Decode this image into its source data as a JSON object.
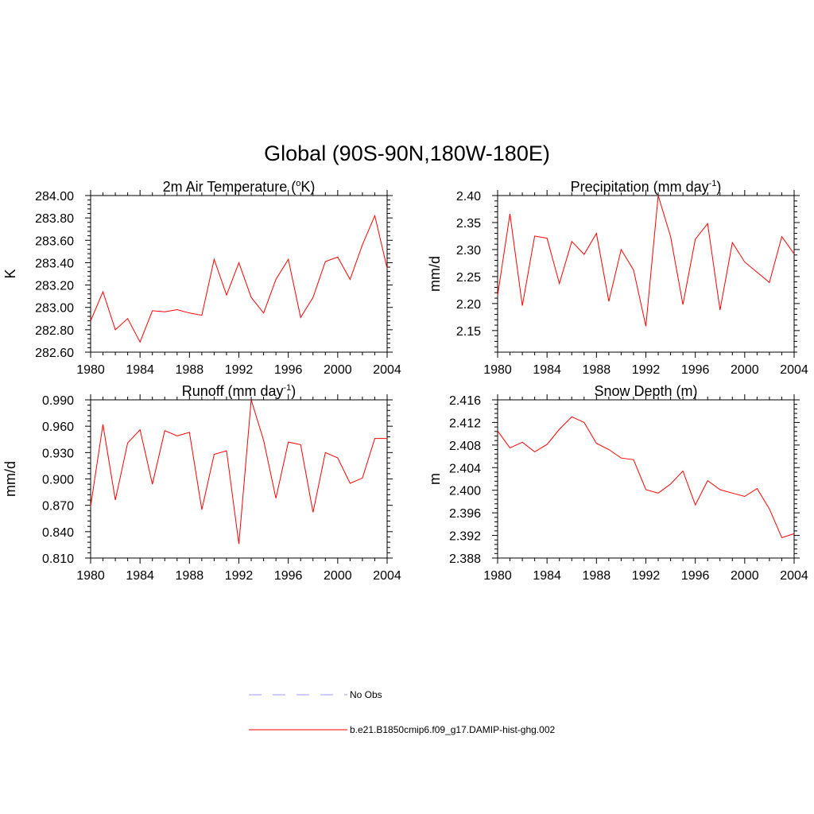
{
  "title": "Global (90S-90N,180W-180E)",
  "colors": {
    "model": "#ff0000",
    "obs": "#9999ff",
    "axis": "#000000"
  },
  "legend": [
    {
      "label": "No Obs",
      "style": "dashed",
      "color": "#9999ff"
    },
    {
      "label": "b.e21.B1850cmip6.f09_g17.DAMIP-hist-ghg.002",
      "style": "solid",
      "color": "#ff0000"
    }
  ],
  "chart_data": [
    {
      "type": "line",
      "title": "2m Air Temperature (",
      "title_sup": "o",
      "title_suffix": "K)",
      "ylabel": "K",
      "xlim": [
        1980,
        2004
      ],
      "ylim": [
        282.6,
        284.0
      ],
      "yticks": [
        "282.60",
        "282.80",
        "283.00",
        "283.20",
        "283.40",
        "283.60",
        "283.80",
        "284.00"
      ],
      "xticks": [
        "1980",
        "1984",
        "1988",
        "1992",
        "1996",
        "2000",
        "2004"
      ],
      "series": [
        {
          "name": "b.e21.B1850cmip6.f09_g17.DAMIP-hist-ghg.002",
          "x": [
            1980,
            1981,
            1982,
            1983,
            1984,
            1985,
            1986,
            1987,
            1988,
            1989,
            1990,
            1991,
            1992,
            1993,
            1994,
            1995,
            1996,
            1997,
            1998,
            1999,
            2000,
            2001,
            2002,
            2003,
            2004
          ],
          "y": [
            282.88,
            283.14,
            282.8,
            282.9,
            282.69,
            282.97,
            282.96,
            282.98,
            282.95,
            282.93,
            283.43,
            283.11,
            283.4,
            283.09,
            282.95,
            283.25,
            283.43,
            282.91,
            283.09,
            283.41,
            283.45,
            283.25,
            283.56,
            283.82,
            283.35
          ]
        }
      ]
    },
    {
      "type": "line",
      "title": "Precipitation (mm day",
      "title_sup": "-1",
      "title_suffix": ")",
      "ylabel": "mm/d",
      "xlim": [
        1980,
        2004
      ],
      "ylim": [
        2.11,
        2.4
      ],
      "yticks": [
        "2.15",
        "2.20",
        "2.25",
        "2.30",
        "2.35",
        "2.40"
      ],
      "xticks": [
        "1980",
        "1984",
        "1988",
        "1992",
        "1996",
        "2000",
        "2004"
      ],
      "series": [
        {
          "name": "b.e21.B1850cmip6.f09_g17.DAMIP-hist-ghg.002",
          "x": [
            1980,
            1981,
            1982,
            1983,
            1984,
            1985,
            1986,
            1987,
            1988,
            1989,
            1990,
            1991,
            1992,
            1993,
            1994,
            1995,
            1996,
            1997,
            1998,
            1999,
            2000,
            2001,
            2002,
            2003,
            2004
          ],
          "y": [
            2.215,
            2.366,
            2.196,
            2.325,
            2.321,
            2.237,
            2.315,
            2.291,
            2.33,
            2.204,
            2.3,
            2.262,
            2.158,
            2.4,
            2.324,
            2.198,
            2.319,
            2.348,
            2.188,
            2.313,
            2.277,
            2.258,
            2.239,
            2.324,
            2.292
          ]
        }
      ]
    },
    {
      "type": "line",
      "title": "Runoff (mm day",
      "title_sup": "-1",
      "title_suffix": ")",
      "ylabel": "mm/d",
      "xlim": [
        1980,
        2004
      ],
      "ylim": [
        0.81,
        0.99
      ],
      "yticks": [
        "0.810",
        "0.840",
        "0.870",
        "0.900",
        "0.930",
        "0.960",
        "0.990"
      ],
      "xticks": [
        "1980",
        "1984",
        "1988",
        "1992",
        "1996",
        "2000",
        "2004"
      ],
      "series": [
        {
          "name": "b.e21.B1850cmip6.f09_g17.DAMIP-hist-ghg.002",
          "x": [
            1980,
            1981,
            1982,
            1983,
            1984,
            1985,
            1986,
            1987,
            1988,
            1989,
            1990,
            1991,
            1992,
            1993,
            1994,
            1995,
            1996,
            1997,
            1998,
            1999,
            2000,
            2001,
            2002,
            2003,
            2004
          ],
          "y": [
            0.869,
            0.962,
            0.876,
            0.941,
            0.956,
            0.894,
            0.955,
            0.949,
            0.953,
            0.865,
            0.928,
            0.932,
            0.826,
            0.99,
            0.944,
            0.878,
            0.942,
            0.939,
            0.862,
            0.93,
            0.924,
            0.895,
            0.901,
            0.946,
            0.946
          ]
        }
      ]
    },
    {
      "type": "line",
      "title": "Snow Depth (m)",
      "title_sup": "",
      "title_suffix": "",
      "ylabel": "m",
      "xlim": [
        1980,
        2004
      ],
      "ylim": [
        2.388,
        2.416
      ],
      "yticks": [
        "2.388",
        "2.392",
        "2.396",
        "2.400",
        "2.404",
        "2.408",
        "2.412",
        "2.416"
      ],
      "xticks": [
        "1980",
        "1984",
        "1988",
        "1992",
        "1996",
        "2000",
        "2004"
      ],
      "series": [
        {
          "name": "b.e21.B1850cmip6.f09_g17.DAMIP-hist-ghg.002",
          "x": [
            1980,
            1981,
            1982,
            1983,
            1984,
            1985,
            1986,
            1987,
            1988,
            1989,
            1990,
            1991,
            1992,
            1993,
            1994,
            1995,
            1996,
            1997,
            1998,
            1999,
            2000,
            2001,
            2002,
            2003,
            2004
          ],
          "y": [
            2.4105,
            2.4075,
            2.4085,
            2.4068,
            2.4081,
            2.4108,
            2.413,
            2.412,
            2.4083,
            2.4072,
            2.4057,
            2.4054,
            2.4001,
            2.3995,
            2.4011,
            2.4034,
            2.3974,
            2.4017,
            2.4001,
            2.3995,
            2.3989,
            2.4003,
            2.3967,
            2.3916,
            2.3923
          ]
        }
      ]
    }
  ]
}
